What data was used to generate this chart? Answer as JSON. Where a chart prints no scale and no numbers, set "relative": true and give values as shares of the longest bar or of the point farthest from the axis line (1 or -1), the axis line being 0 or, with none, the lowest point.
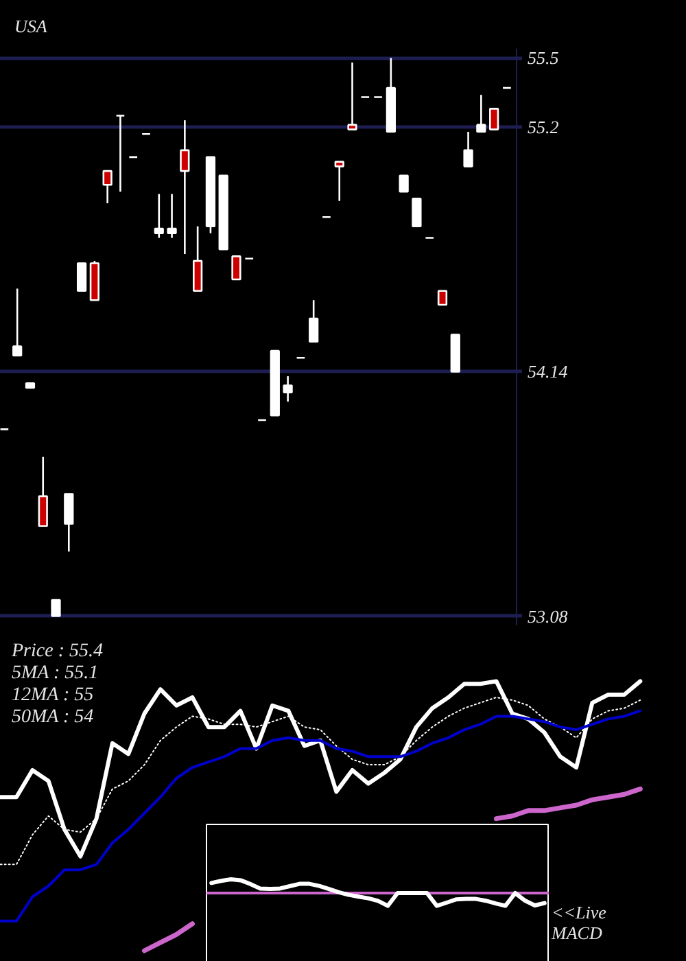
{
  "chart_data": [
    {
      "type": "candlestick",
      "title": "USA",
      "categories": [
        null,
        null,
        null,
        null,
        null,
        null,
        null,
        null,
        null,
        null,
        null,
        null,
        null,
        null,
        null,
        null,
        null,
        null,
        null,
        null,
        null,
        null,
        null,
        null,
        null,
        null,
        null,
        null,
        null,
        null,
        null,
        null,
        null,
        null,
        null,
        null,
        null,
        null,
        null,
        null
      ],
      "ohlc": [
        [
          53.89,
          53.89,
          53.89,
          53.89
        ],
        [
          54.21,
          54.5,
          54.21,
          54.25
        ],
        [
          54.07,
          54.09,
          54.07,
          54.09
        ],
        [
          53.6,
          53.77,
          53.47,
          53.47
        ],
        [
          53.08,
          53.15,
          53.08,
          53.15
        ],
        [
          53.48,
          53.61,
          53.36,
          53.61
        ],
        [
          54.49,
          54.61,
          54.49,
          54.61
        ],
        [
          54.61,
          54.62,
          54.45,
          54.45
        ],
        [
          55.01,
          55.01,
          54.87,
          54.95
        ],
        [
          55.25,
          55.25,
          54.92,
          55.25
        ],
        [
          55.07,
          55.07,
          55.07,
          55.07
        ],
        [
          55.17,
          55.17,
          55.17,
          55.17
        ],
        [
          54.74,
          54.91,
          54.72,
          54.76
        ],
        [
          54.74,
          54.91,
          54.72,
          54.76
        ],
        [
          55.1,
          55.23,
          54.65,
          55.01
        ],
        [
          54.62,
          54.77,
          54.49,
          54.49
        ],
        [
          54.77,
          55.07,
          54.74,
          55.07
        ],
        [
          54.67,
          54.99,
          54.67,
          54.99
        ],
        [
          54.64,
          54.64,
          54.54,
          54.54
        ],
        [
          54.63,
          54.63,
          54.63,
          54.63
        ],
        [
          53.93,
          53.93,
          53.93,
          53.93
        ],
        [
          53.95,
          54.23,
          53.95,
          54.23
        ],
        [
          54.05,
          54.12,
          54.01,
          54.08
        ],
        [
          54.2,
          54.2,
          54.2,
          54.2
        ],
        [
          54.27,
          54.45,
          54.27,
          54.37
        ],
        [
          54.81,
          54.81,
          54.81,
          54.81
        ],
        [
          55.05,
          55.05,
          54.88,
          55.03
        ],
        [
          55.21,
          55.48,
          55.19,
          55.19
        ],
        [
          55.33,
          55.33,
          55.33,
          55.33
        ],
        [
          55.33,
          55.33,
          55.33,
          55.33
        ],
        [
          55.18,
          55.5,
          55.18,
          55.37
        ],
        [
          54.92,
          54.99,
          54.92,
          54.99
        ],
        [
          54.77,
          54.89,
          54.77,
          54.89
        ],
        [
          54.72,
          54.72,
          54.72,
          54.72
        ],
        [
          54.49,
          54.49,
          54.43,
          54.43
        ],
        [
          54.14,
          54.3,
          54.14,
          54.3
        ],
        [
          55.03,
          55.18,
          55.03,
          55.1
        ],
        [
          55.18,
          55.34,
          55.18,
          55.21
        ],
        [
          55.28,
          55.28,
          55.19,
          55.19
        ],
        [
          55.37,
          55.37,
          55.37,
          55.37
        ]
      ],
      "colors": [
        "#ffffff",
        "#ffffff",
        "#ffffff",
        "#cc0000",
        "#ffffff",
        "#ffffff",
        "#ffffff",
        "#cc0000",
        "#cc0000",
        "#ffffff",
        "#ffffff",
        "#ffffff",
        "#ffffff",
        "#ffffff",
        "#cc0000",
        "#cc0000",
        "#ffffff",
        "#ffffff",
        "#cc0000",
        "#ffffff",
        "#ffffff",
        "#ffffff",
        "#ffffff",
        "#ffffff",
        "#ffffff",
        "#ffffff",
        "#cc0000",
        "#cc0000",
        "#ffffff",
        "#ffffff",
        "#ffffff",
        "#ffffff",
        "#ffffff",
        "#ffffff",
        "#cc0000",
        "#ffffff",
        "#ffffff",
        "#ffffff",
        "#cc0000",
        "#ffffff"
      ],
      "ylim": [
        53.04,
        55.54
      ],
      "yticks": [
        53.08,
        54.14,
        55.2,
        55.5
      ],
      "grid": "y"
    },
    {
      "type": "line",
      "relative": true,
      "categories": [
        null,
        null,
        null,
        null,
        null,
        null,
        null,
        null,
        null,
        null,
        null,
        null,
        null,
        null,
        null,
        null,
        null,
        null,
        null,
        null,
        null,
        null,
        null,
        null,
        null,
        null,
        null,
        null,
        null,
        null,
        null,
        null,
        null,
        null,
        null,
        null,
        null,
        null,
        null,
        null,
        null
      ],
      "series": [
        {
          "color": "#ffffff",
          "values": [
            0.57,
            0.57,
            0.67,
            0.63,
            0.45,
            0.35,
            0.49,
            0.77,
            0.73,
            0.88,
            0.97,
            0.91,
            0.94,
            0.83,
            0.83,
            0.89,
            0.75,
            0.91,
            0.89,
            0.76,
            0.78,
            0.59,
            0.67,
            0.62,
            0.66,
            0.71,
            0.83,
            0.9,
            0.94,
            0.99,
            0.99,
            1.0,
            0.88,
            0.86,
            0.81,
            0.72,
            0.68,
            0.92,
            0.95,
            0.95,
            1.0
          ]
        },
        {
          "color": "#ffffff",
          "line_style": "dotted",
          "values": [
            0.32,
            0.32,
            0.43,
            0.5,
            0.45,
            0.44,
            0.49,
            0.6,
            0.63,
            0.69,
            0.78,
            0.83,
            0.87,
            0.86,
            0.84,
            0.84,
            0.83,
            0.85,
            0.87,
            0.83,
            0.82,
            0.76,
            0.71,
            0.69,
            0.69,
            0.72,
            0.78,
            0.83,
            0.87,
            0.9,
            0.92,
            0.94,
            0.93,
            0.91,
            0.86,
            0.83,
            0.79,
            0.86,
            0.89,
            0.9,
            0.93
          ]
        },
        {
          "color": "#0000cc",
          "values": [
            0.11,
            0.11,
            0.2,
            0.24,
            0.3,
            0.3,
            0.32,
            0.4,
            0.45,
            0.51,
            0.57,
            0.64,
            0.68,
            0.7,
            0.72,
            0.75,
            0.75,
            0.78,
            0.79,
            0.78,
            0.78,
            0.75,
            0.74,
            0.72,
            0.72,
            0.72,
            0.74,
            0.77,
            0.79,
            0.82,
            0.84,
            0.87,
            0.87,
            0.86,
            0.85,
            0.83,
            0.82,
            0.84,
            0.86,
            0.87,
            0.89
          ]
        },
        {
          "color": "#cc66cc",
          "values": [
            null,
            null,
            null,
            null,
            null,
            null,
            null,
            null,
            null,
            0,
            0.03,
            0.06,
            0.1,
            null,
            null,
            null,
            null,
            null,
            null,
            null,
            null,
            null,
            null,
            null,
            null,
            null,
            null,
            null,
            null,
            null,
            null,
            0.49,
            0.5,
            0.52,
            0.52,
            0.53,
            0.54,
            0.56,
            0.57,
            0.58,
            0.6
          ]
        }
      ],
      "annotations": [
        "Price : 55.4",
        "5MA : 55.1",
        "12MA : 55",
        "50MA : 54"
      ]
    },
    {
      "type": "line",
      "relative": true,
      "categories": [
        null,
        null,
        null,
        null,
        null,
        null,
        null,
        null,
        null,
        null,
        null,
        null,
        null,
        null,
        null,
        null,
        null,
        null,
        null,
        null,
        null,
        null,
        null,
        null,
        null,
        null,
        null,
        null,
        null,
        null,
        null,
        null,
        null,
        null,
        null
      ],
      "series": [
        {
          "color": "#ffffff",
          "values": [
            0.73,
            0.89,
            1.0,
            0.93,
            0.65,
            0.32,
            0.3,
            0.33,
            0.5,
            0.67,
            0.67,
            0.52,
            0.29,
            0.06,
            -0.13,
            -0.26,
            -0.38,
            -0.57,
            -0.93,
            0,
            0,
            0,
            0,
            -0.93,
            -0.7,
            -0.46,
            -0.43,
            -0.43,
            -0.56,
            -0.76,
            -0.93,
            0,
            -0.55,
            -0.9,
            -0.73
          ]
        }
      ],
      "ref_lines": [
        {
          "axis": "y",
          "value": 0,
          "color": "#cc66cc"
        }
      ],
      "annotations": [
        "<<Live MACD"
      ]
    }
  ]
}
